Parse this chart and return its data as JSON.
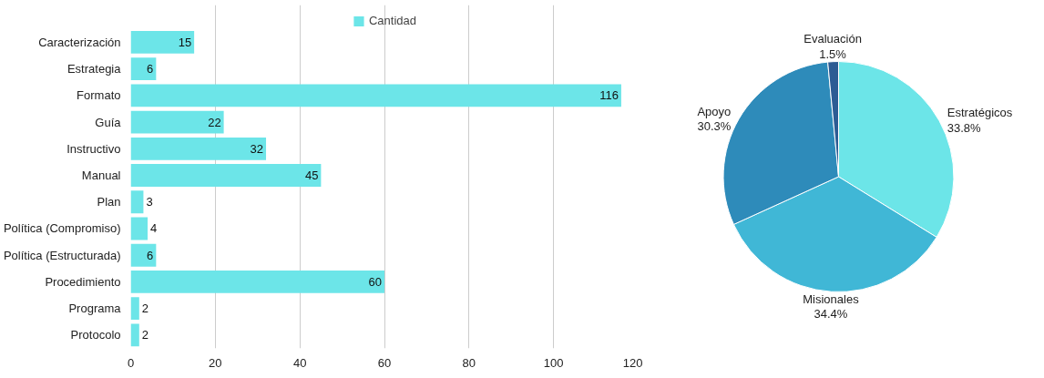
{
  "chart_data": [
    {
      "type": "bar",
      "orientation": "horizontal",
      "categories": [
        "Caracterización",
        "Estrategia",
        "Formato",
        "Guía",
        "Instructivo",
        "Manual",
        "Plan",
        "Política (Compromiso)",
        "Política (Estructurada)",
        "Procedimiento",
        "Programa",
        "Protocolo"
      ],
      "series": [
        {
          "name": "Cantidad",
          "color": "#6ce5e8",
          "values": [
            15,
            6,
            116,
            22,
            32,
            45,
            3,
            4,
            6,
            60,
            2,
            2
          ]
        }
      ],
      "xlim": [
        0,
        120
      ],
      "xticks": [
        0,
        20,
        40,
        60,
        80,
        100,
        120
      ],
      "grid": "x",
      "legend": "top",
      "data_labels": true
    },
    {
      "type": "pie",
      "categories": [
        "Estratégicos",
        "Misionales",
        "Apoyo",
        "Evaluación"
      ],
      "values": [
        33.8,
        34.4,
        30.3,
        1.5
      ],
      "colors": [
        "#6ce5e8",
        "#40b7d6",
        "#2e8bba",
        "#2d5c94"
      ],
      "value_labels": [
        "33.8%",
        "34.4%",
        "30.3%",
        "1.5%"
      ]
    }
  ]
}
